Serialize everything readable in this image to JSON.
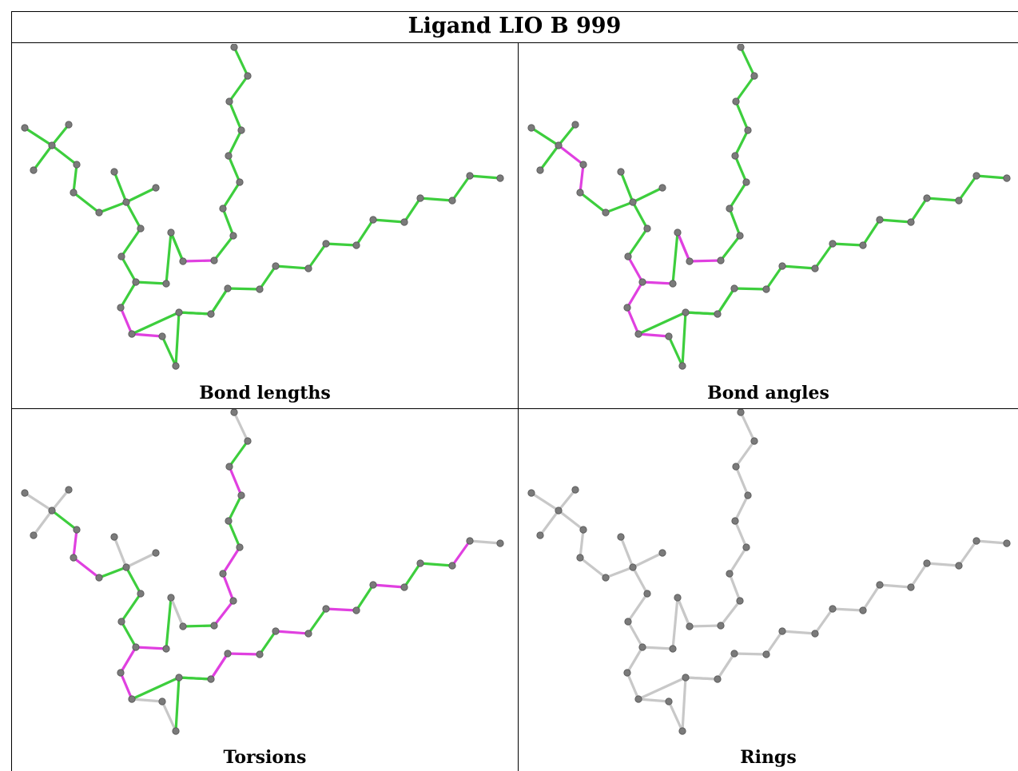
{
  "title": "Ligand LIO B 999",
  "panels": [
    {
      "caption": "Bond lengths"
    },
    {
      "caption": "Bond angles"
    },
    {
      "caption": "Torsions"
    },
    {
      "caption": "Rings"
    }
  ],
  "colors": {
    "ok_bond": "#3dce3d",
    "outlier_bond": "#e040e0",
    "neutral_bond": "#c8c8c8",
    "atom": "#7a7a7a"
  }
}
